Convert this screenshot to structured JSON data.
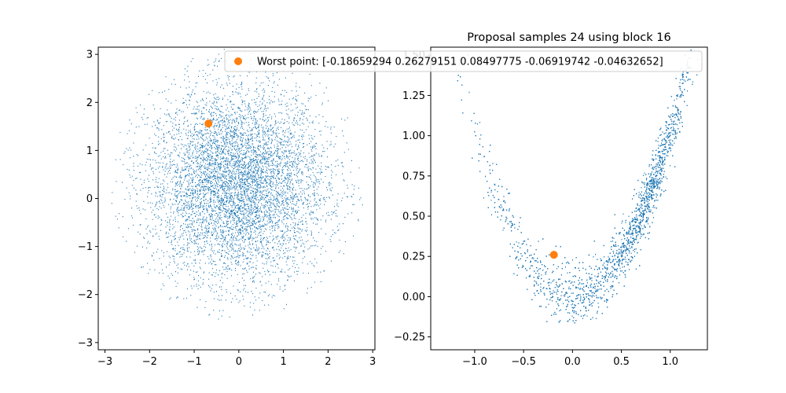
{
  "chart_data": [
    {
      "type": "scatter",
      "title": "",
      "xlabel": "",
      "ylabel": "",
      "xlim": [
        -3.15,
        3.05
      ],
      "ylim": [
        -3.15,
        3.15
      ],
      "xticks": [
        -3,
        -2,
        -1,
        0,
        1,
        2,
        3
      ],
      "xtick_labels": [
        "−3",
        "−2",
        "−1",
        "0",
        "1",
        "2",
        "3"
      ],
      "yticks": [
        -3,
        -2,
        -1,
        0,
        1,
        2,
        3
      ],
      "ytick_labels": [
        "−3",
        "−2",
        "−1",
        "0",
        "1",
        "2",
        "3"
      ],
      "grid": false,
      "series": [
        {
          "kind": "samples",
          "color": "#1f77b4",
          "distribution": "approximately standard normal blob centered near (0, 0.3), radius about 2.8",
          "center": [
            -0.05,
            0.3
          ],
          "spread": 1.0,
          "clip_radius": 2.85
        },
        {
          "kind": "highlight",
          "color": "#ff7f0e",
          "x": -0.68,
          "y": 1.56
        }
      ]
    },
    {
      "type": "scatter",
      "title": "Proposal samples 24 using block 16",
      "xlabel": "",
      "ylabel": "",
      "xlim": [
        -1.45,
        1.38
      ],
      "ylim": [
        -0.33,
        1.55
      ],
      "xticks": [
        -1.0,
        -0.5,
        0.0,
        0.5,
        1.0
      ],
      "xtick_labels": [
        "−1.0",
        "−0.5",
        "0.0",
        "0.5",
        "1.0"
      ],
      "yticks": [
        -0.25,
        0.0,
        0.25,
        0.5,
        0.75,
        1.0,
        1.25,
        1.5
      ],
      "ytick_labels": [
        "−0.25",
        "0.00",
        "0.25",
        "0.50",
        "0.75",
        "1.00",
        "1.25",
        "1.50"
      ],
      "grid": false,
      "series": [
        {
          "kind": "samples",
          "color": "#1f77b4",
          "distribution": "banana / parabola shape y ≈ x², denser on right arm"
        },
        {
          "kind": "highlight",
          "color": "#ff7f0e",
          "x": -0.19,
          "y": 0.26
        }
      ],
      "legend": {
        "placement": "top",
        "entries": [
          {
            "label": "Worst point: [-0.18659294  0.26279151  0.08497775 -0.06919742 -0.04632652]",
            "color": "#ff7f0e",
            "marker": "circle"
          }
        ]
      }
    }
  ]
}
